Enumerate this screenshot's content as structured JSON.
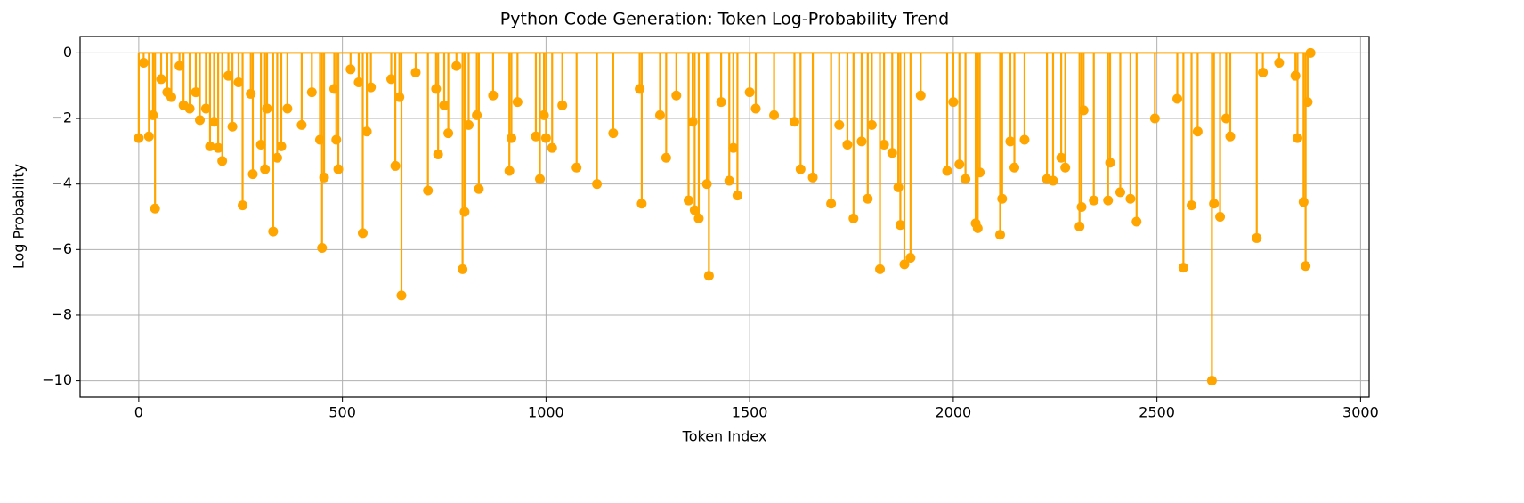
{
  "chart_data": {
    "type": "stem",
    "title": "Python Code Generation: Token Log-Probability Trend",
    "x_label": "Token Index",
    "y_label": "Log Probability",
    "color": "#ffa500",
    "grid": true,
    "xlim": [
      -144,
      3021
    ],
    "ylim": [
      -10.5,
      0.5
    ],
    "xticks": [
      0,
      500,
      1000,
      1500,
      2000,
      2500,
      3000
    ],
    "yticks": [
      {
        "value": -10,
        "label": "−10"
      },
      {
        "value": -8,
        "label": "−8"
      },
      {
        "value": -6,
        "label": "−6"
      },
      {
        "value": -4,
        "label": "−4"
      },
      {
        "value": -2,
        "label": "−2"
      },
      0
    ],
    "x": [
      0,
      12,
      25,
      35,
      40,
      55,
      70,
      80,
      100,
      110,
      125,
      140,
      150,
      165,
      175,
      185,
      195,
      205,
      220,
      230,
      245,
      255,
      275,
      280,
      300,
      310,
      315,
      330,
      340,
      350,
      365,
      400,
      425,
      445,
      450,
      455,
      480,
      485,
      490,
      520,
      540,
      550,
      560,
      570,
      620,
      630,
      640,
      645,
      680,
      710,
      730,
      735,
      750,
      760,
      780,
      795,
      800,
      810,
      830,
      835,
      870,
      910,
      915,
      930,
      975,
      985,
      995,
      1000,
      1015,
      1040,
      1075,
      1125,
      1165,
      1230,
      1235,
      1280,
      1295,
      1320,
      1350,
      1360,
      1365,
      1375,
      1395,
      1400,
      1430,
      1450,
      1460,
      1470,
      1500,
      1515,
      1560,
      1610,
      1625,
      1655,
      1700,
      1720,
      1740,
      1755,
      1775,
      1790,
      1800,
      1820,
      1830,
      1850,
      1865,
      1870,
      1880,
      1895,
      1920,
      1985,
      2000,
      2015,
      2030,
      2055,
      2060,
      2065,
      2115,
      2120,
      2140,
      2150,
      2175,
      2230,
      2245,
      2265,
      2275,
      2310,
      2315,
      2320,
      2345,
      2380,
      2385,
      2410,
      2435,
      2450,
      2495,
      2550,
      2565,
      2585,
      2600,
      2635,
      2640,
      2655,
      2670,
      2680,
      2745,
      2760,
      2800,
      2840,
      2845,
      2860,
      2865,
      2870,
      2877
    ],
    "values": [
      -2.6,
      -0.3,
      -2.55,
      -1.9,
      -4.75,
      -0.8,
      -1.2,
      -1.35,
      -0.4,
      -1.6,
      -1.7,
      -1.2,
      -2.05,
      -1.7,
      -2.85,
      -2.1,
      -2.9,
      -3.3,
      -0.7,
      -2.25,
      -0.9,
      -4.65,
      -1.25,
      -3.7,
      -2.8,
      -3.55,
      -1.7,
      -5.45,
      -3.2,
      -2.85,
      -1.7,
      -2.2,
      -1.2,
      -2.65,
      -5.95,
      -3.8,
      -1.1,
      -2.65,
      -3.55,
      -0.5,
      -0.9,
      -5.5,
      -2.4,
      -1.05,
      -0.8,
      -3.45,
      -1.35,
      -7.4,
      -0.6,
      -4.2,
      -1.1,
      -3.1,
      -1.6,
      -2.45,
      -0.4,
      -6.6,
      -4.85,
      -2.2,
      -1.9,
      -4.15,
      -1.3,
      -3.6,
      -2.6,
      -1.5,
      -2.55,
      -3.85,
      -1.9,
      -2.6,
      -2.9,
      -1.6,
      -3.5,
      -4.0,
      -2.45,
      -1.1,
      -4.6,
      -1.9,
      -3.2,
      -1.3,
      -4.5,
      -2.1,
      -4.8,
      -5.05,
      -4.0,
      -6.8,
      -1.5,
      -3.9,
      -2.9,
      -4.35,
      -1.2,
      -1.7,
      -1.9,
      -2.1,
      -3.55,
      -3.8,
      -4.6,
      -2.2,
      -2.8,
      -5.05,
      -2.7,
      -4.45,
      -2.2,
      -6.6,
      -2.8,
      -3.05,
      -4.1,
      -5.25,
      -6.45,
      -6.25,
      -1.3,
      -3.6,
      -1.5,
      -3.4,
      -3.85,
      -5.2,
      -5.35,
      -3.65,
      -5.55,
      -4.45,
      -2.7,
      -3.5,
      -2.65,
      -3.85,
      -3.9,
      -3.2,
      -3.5,
      -5.3,
      -4.7,
      -1.75,
      -4.5,
      -4.5,
      -3.35,
      -4.25,
      -4.45,
      -5.15,
      -2.0,
      -1.4,
      -6.55,
      -4.65,
      -2.4,
      -10.0,
      -4.6,
      -5.0,
      -2.0,
      -2.55,
      -5.65,
      -0.6,
      -0.3,
      -0.7,
      -2.6,
      -4.55,
      -6.5,
      -1.5,
      0
    ]
  }
}
